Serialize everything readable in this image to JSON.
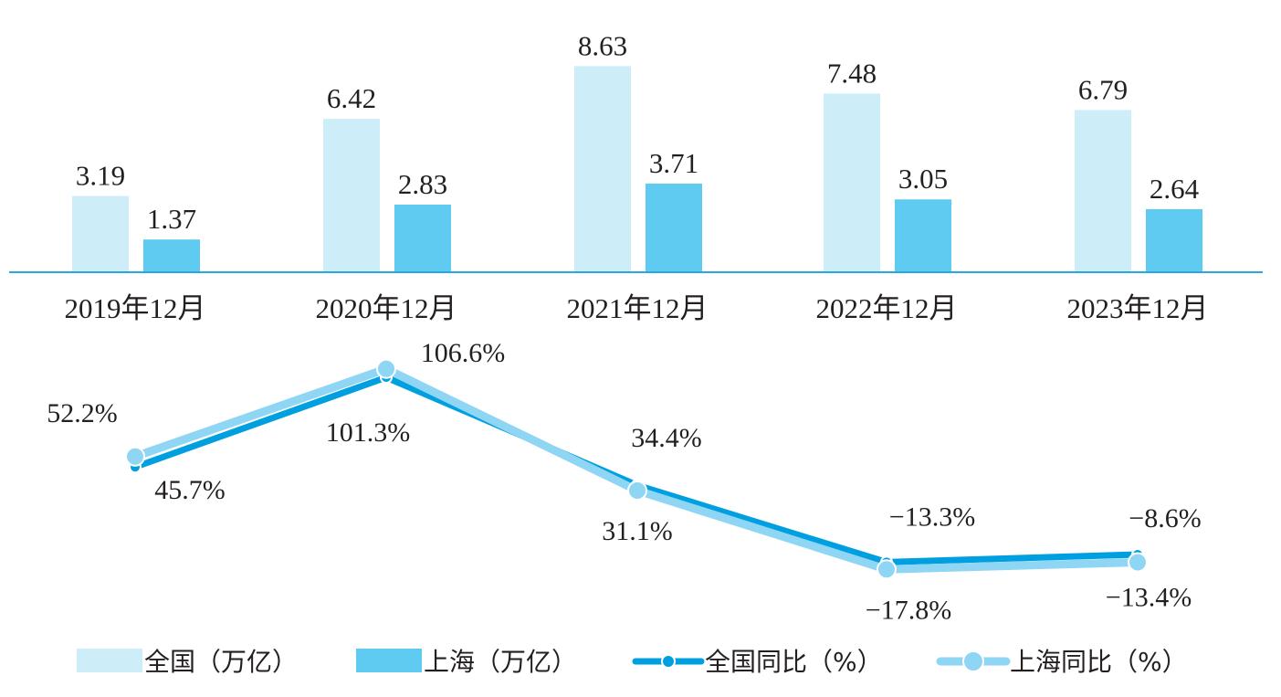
{
  "chart_data": {
    "type": "bar+line",
    "categories": [
      "2019年12月",
      "2020年12月",
      "2021年12月",
      "2022年12月",
      "2023年12月"
    ],
    "bar_series": [
      {
        "name": "全国（万亿）",
        "values": [
          3.19,
          6.42,
          8.63,
          7.48,
          6.79
        ],
        "labels": [
          "3.19",
          "6.42",
          "8.63",
          "7.48",
          "6.79"
        ],
        "color": "#cdeef9"
      },
      {
        "name": "上海（万亿）",
        "values": [
          1.37,
          2.83,
          3.71,
          3.05,
          2.64
        ],
        "labels": [
          "1.37",
          "2.83",
          "3.71",
          "3.05",
          "2.64"
        ],
        "color": "#5fcbf1"
      }
    ],
    "line_series": [
      {
        "name": "全国同比（%）",
        "values": [
          45.7,
          101.3,
          34.4,
          -13.3,
          -8.6
        ],
        "labels": [
          "45.7%",
          "101.3%",
          "34.4%",
          "−13.3%",
          "−8.6%"
        ],
        "color": "#00a0e0"
      },
      {
        "name": "上海同比（%）",
        "values": [
          52.2,
          106.6,
          31.1,
          -17.8,
          -13.4
        ],
        "labels": [
          "52.2%",
          "106.6%",
          "31.1%",
          "−17.8%",
          "−13.4%"
        ],
        "color": "#8fd6f4"
      }
    ],
    "axis_color": "#29a8e0",
    "legend_position": "bottom"
  }
}
